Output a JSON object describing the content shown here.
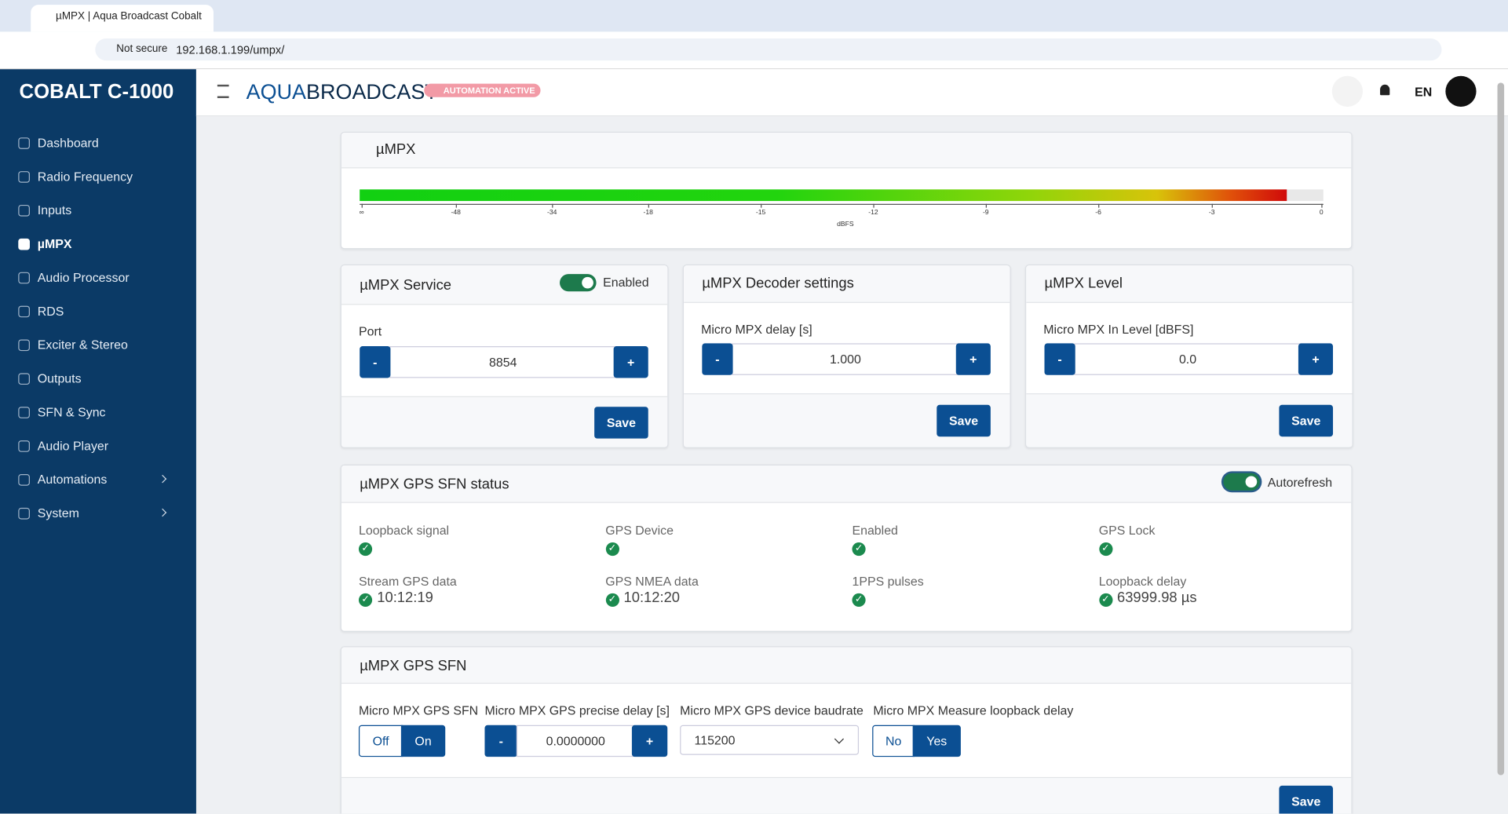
{
  "browser": {
    "tab_title": "µMPX | Aqua Broadcast Cobalt",
    "security": "Not secure",
    "url": "192.168.1.199/umpx/"
  },
  "sidebar": {
    "brand": "COBALT C-1000",
    "items": [
      "Dashboard",
      "Radio Frequency",
      "Inputs",
      "µMPX",
      "Audio Processor",
      "RDS",
      "Exciter & Stereo",
      "Outputs",
      "SFN & Sync",
      "Audio Player",
      "Automations",
      "System"
    ]
  },
  "header": {
    "logo_a": "AQUA",
    "logo_b": "BROADCAST",
    "badge": "AUTOMATION ACTIVE",
    "language": "EN"
  },
  "common": {
    "minus": "-",
    "plus": "+",
    "save": "Save"
  },
  "meter": {
    "title": "µMPX",
    "ticks": [
      "∞",
      "-48",
      "-34",
      "-18",
      "-15",
      "-12",
      "-9",
      "-6",
      "-3",
      "0"
    ],
    "unit": "dBFS"
  },
  "service": {
    "title": "µMPX Service",
    "toggle": "Enabled",
    "label": "Port",
    "value": "8854"
  },
  "decoder": {
    "title": "µMPX Decoder settings",
    "label": "Micro MPX delay [s]",
    "value": "1.000"
  },
  "level": {
    "title": "µMPX Level",
    "label": "Micro MPX In Level [dBFS]",
    "value": "0.0"
  },
  "status": {
    "title": "µMPX GPS SFN status",
    "toggle": "Autorefresh",
    "items": [
      {
        "label": "Loopback signal"
      },
      {
        "label": "GPS Device"
      },
      {
        "label": "Enabled"
      },
      {
        "label": "GPS Lock"
      },
      {
        "label": "Stream GPS data",
        "value": "10:12:19"
      },
      {
        "label": "GPS NMEA data",
        "value": "10:12:20"
      },
      {
        "label": "1PPS pulses"
      },
      {
        "label": "Loopback delay",
        "value": "63999.98 µs"
      }
    ]
  },
  "sfn": {
    "title": "µMPX GPS SFN",
    "mode_label": "Micro MPX GPS SFN",
    "mode_options": [
      "Off",
      "On"
    ],
    "delay_label": "Micro MPX GPS precise delay [s]",
    "delay_value": "0.0000000",
    "baud_label": "Micro MPX GPS device baudrate",
    "baud_value": "115200",
    "loop_label": "Micro MPX Measure loopback delay",
    "loop_options": [
      "No",
      "Yes"
    ]
  }
}
